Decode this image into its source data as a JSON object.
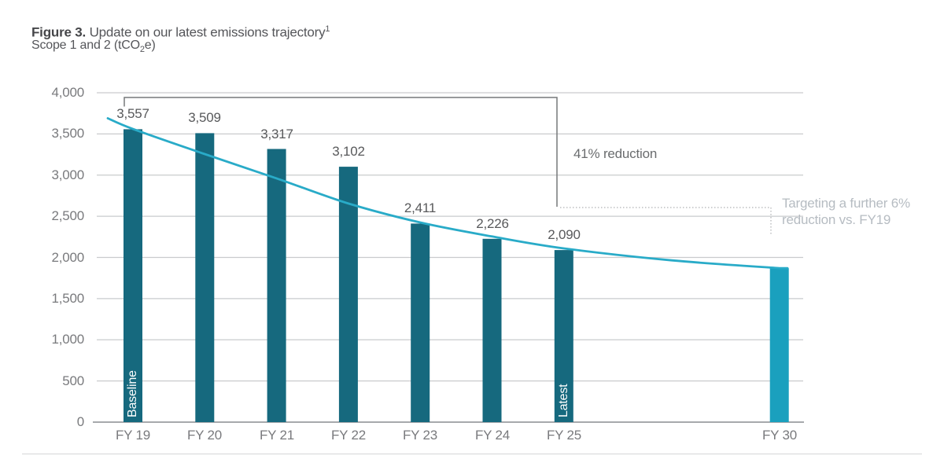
{
  "figure": {
    "label": "Figure 3.",
    "title": " Update on our latest emissions trajectory",
    "footnote_marker": "1",
    "subtitle_prefix": "Scope 1 and 2 (tCO",
    "subtitle_sub": "2",
    "subtitle_suffix": "e)"
  },
  "chart_data": {
    "type": "bar",
    "title": "Figure 3. Update on our latest emissions trajectory",
    "subtitle": "Scope 1 and 2 (tCO2e)",
    "unit": "tCO2e",
    "categories": [
      "FY 19",
      "FY 20",
      "FY 21",
      "FY 22",
      "FY 23",
      "FY 24",
      "FY 25",
      "FY 30"
    ],
    "values": [
      3557,
      3509,
      3317,
      3102,
      2411,
      2226,
      2090,
      1870
    ],
    "value_labels": [
      "3,557",
      "3,509",
      "3,317",
      "3,102",
      "2,411",
      "2,226",
      "2,090",
      ""
    ],
    "bar_tags": [
      "Baseline",
      "",
      "",
      "",
      "",
      "",
      "Latest",
      ""
    ],
    "slots": [
      0,
      1,
      2,
      3,
      4,
      5,
      6,
      9
    ],
    "bar_colors": [
      "#16697E",
      "#16697E",
      "#16697E",
      "#16697E",
      "#16697E",
      "#16697E",
      "#16697E",
      "#1AA0BE"
    ],
    "ylim": [
      0,
      4000
    ],
    "ytick_step": 500,
    "ytick_labels": [
      "0",
      "500",
      "1,000",
      "1,500",
      "2,000",
      "2,500",
      "3,000",
      "3,500",
      "4,000"
    ],
    "grid": true,
    "legend": "none",
    "trajectory_line": {
      "color": "#29ABC8",
      "points": [
        {
          "slot": -0.35,
          "value": 3690
        },
        {
          "slot": 0,
          "value": 3560
        },
        {
          "slot": 1,
          "value": 3255
        },
        {
          "slot": 2,
          "value": 2960
        },
        {
          "slot": 3,
          "value": 2655
        },
        {
          "slot": 4,
          "value": 2425
        },
        {
          "slot": 5,
          "value": 2255
        },
        {
          "slot": 6,
          "value": 2110
        },
        {
          "slot": 7.5,
          "value": 1965
        },
        {
          "slot": 9,
          "value": 1870
        }
      ]
    },
    "annotations": {
      "reduction": {
        "text": "41% reduction"
      },
      "target": {
        "line1": "Targeting a further 6%",
        "line2": "reduction vs. FY19"
      }
    },
    "colors": {
      "grid": "#C9CBCD",
      "axis": "#A7A9AC",
      "bracket": "#77787A",
      "dotted": "#BDBFC1",
      "value_label": "#58595B",
      "axis_label": "#797A7D",
      "annotation_dark": "#6A6C6E",
      "annotation_muted": "#B6BCC2",
      "bar_dark": "#16697E",
      "bar_light": "#1AA0BE",
      "line": "#29ABC8"
    }
  }
}
